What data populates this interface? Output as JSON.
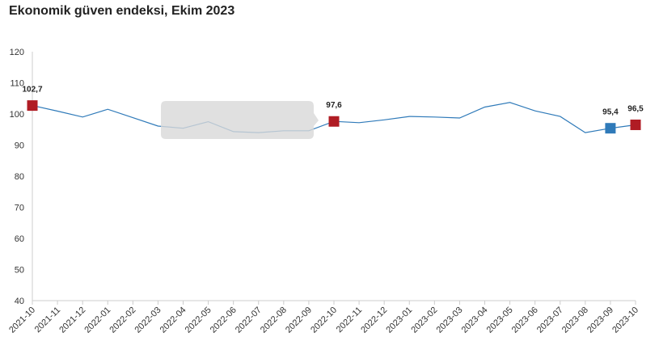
{
  "chart_data": {
    "type": "line",
    "title": "Ekonomik güven endeksi, Ekim 2023",
    "xlabel": "",
    "ylabel": "",
    "ylim": [
      40,
      120
    ],
    "yticks": [
      40,
      50,
      60,
      70,
      80,
      90,
      100,
      110,
      120
    ],
    "grid": false,
    "categories": [
      "2021-10",
      "2021-11",
      "2021-12",
      "2022-01",
      "2022-02",
      "2022-03",
      "2022-04",
      "2022-05",
      "2022-06",
      "2022-07",
      "2022-08",
      "2022-09",
      "2022-10",
      "2022-11",
      "2022-12",
      "2023-01",
      "2023-02",
      "2023-03",
      "2023-04",
      "2023-05",
      "2023-06",
      "2023-07",
      "2023-08",
      "2023-09",
      "2023-10"
    ],
    "series": [
      {
        "values": [
          102.7,
          100.9,
          99.0,
          101.5,
          98.8,
          96.1,
          95.4,
          97.5,
          94.3,
          94.0,
          94.6,
          94.6,
          97.6,
          97.2,
          98.1,
          99.2,
          99.0,
          98.7,
          102.2,
          103.7,
          101.0,
          99.2,
          94.0,
          95.4,
          96.5
        ],
        "color": "#2f7ab9"
      }
    ],
    "highlighted_points": [
      {
        "category": "2021-10",
        "value": 102.7,
        "label": "102,7",
        "color": "#b01c24"
      },
      {
        "category": "2022-10",
        "value": 97.6,
        "label": "97,6",
        "color": "#b01c24"
      },
      {
        "category": "2023-09",
        "value": 95.4,
        "label": "95,4",
        "color": "#2f7ab9"
      },
      {
        "category": "2023-10",
        "value": 96.5,
        "label": "96,5",
        "color": "#b01c24"
      }
    ]
  }
}
